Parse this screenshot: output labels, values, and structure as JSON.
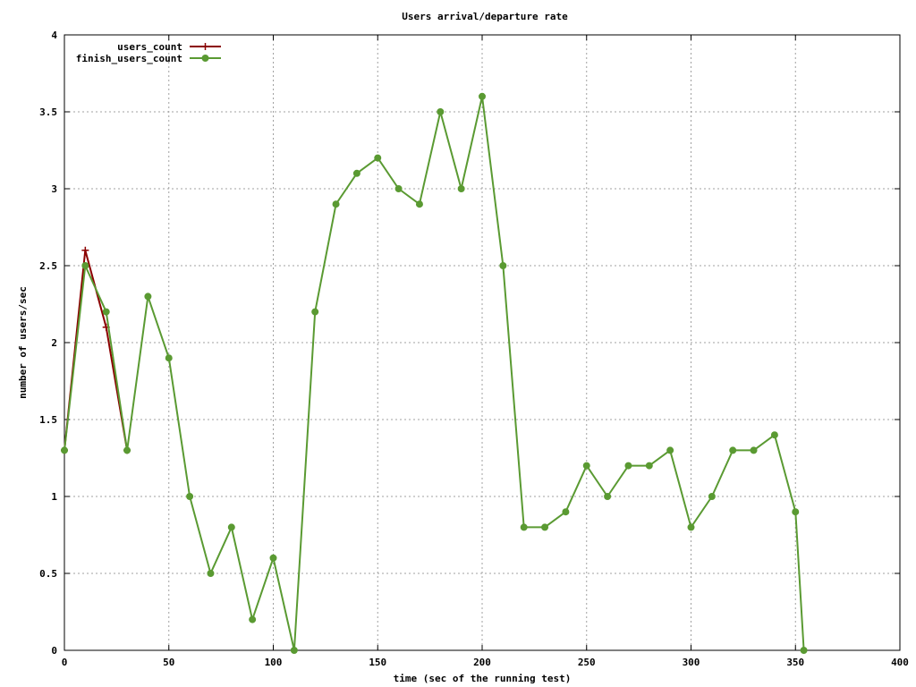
{
  "chart_data": {
    "type": "line",
    "title": "Users arrival/departure rate",
    "xlabel": "time (sec of the running test)",
    "ylabel": "number of users/sec",
    "xlim": [
      0,
      400
    ],
    "ylim": [
      0,
      4
    ],
    "x_ticks": [
      0,
      50,
      100,
      150,
      200,
      250,
      300,
      350,
      400
    ],
    "x_tick_labels": [
      "0",
      "50",
      "100",
      "150",
      "200",
      "250",
      "300",
      "350",
      "400"
    ],
    "y_ticks": [
      0,
      0.5,
      1,
      1.5,
      2,
      2.5,
      3,
      3.5,
      4
    ],
    "y_tick_labels": [
      "0",
      "0.5",
      "1",
      "1.5",
      "2",
      "2.5",
      "3",
      "3.5",
      "4"
    ],
    "grid": true,
    "legend_position": "top-left",
    "series": [
      {
        "name": "users_count",
        "color": "#8b0000",
        "marker": "plus",
        "x": [
          0,
          10,
          20,
          30
        ],
        "y": [
          1.3,
          2.6,
          2.1,
          1.3
        ]
      },
      {
        "name": "finish_users_count",
        "color": "#5a9a32",
        "marker": "filled-circle",
        "x": [
          0,
          10,
          20,
          30,
          40,
          50,
          60,
          70,
          80,
          90,
          100,
          110,
          120,
          130,
          140,
          150,
          160,
          170,
          180,
          190,
          200,
          210,
          220,
          230,
          240,
          250,
          260,
          270,
          280,
          290,
          300,
          310,
          320,
          330,
          340,
          350,
          354
        ],
        "y": [
          1.3,
          2.5,
          2.2,
          1.3,
          2.3,
          1.9,
          1.0,
          0.5,
          0.8,
          0.2,
          0.6,
          0.0,
          2.2,
          2.9,
          3.1,
          3.2,
          3.0,
          2.9,
          3.5,
          3.0,
          3.6,
          2.5,
          0.8,
          0.8,
          0.9,
          1.2,
          1.0,
          1.2,
          1.2,
          1.3,
          0.8,
          1.0,
          1.3,
          1.3,
          1.4,
          0.9,
          0.0
        ]
      }
    ]
  }
}
